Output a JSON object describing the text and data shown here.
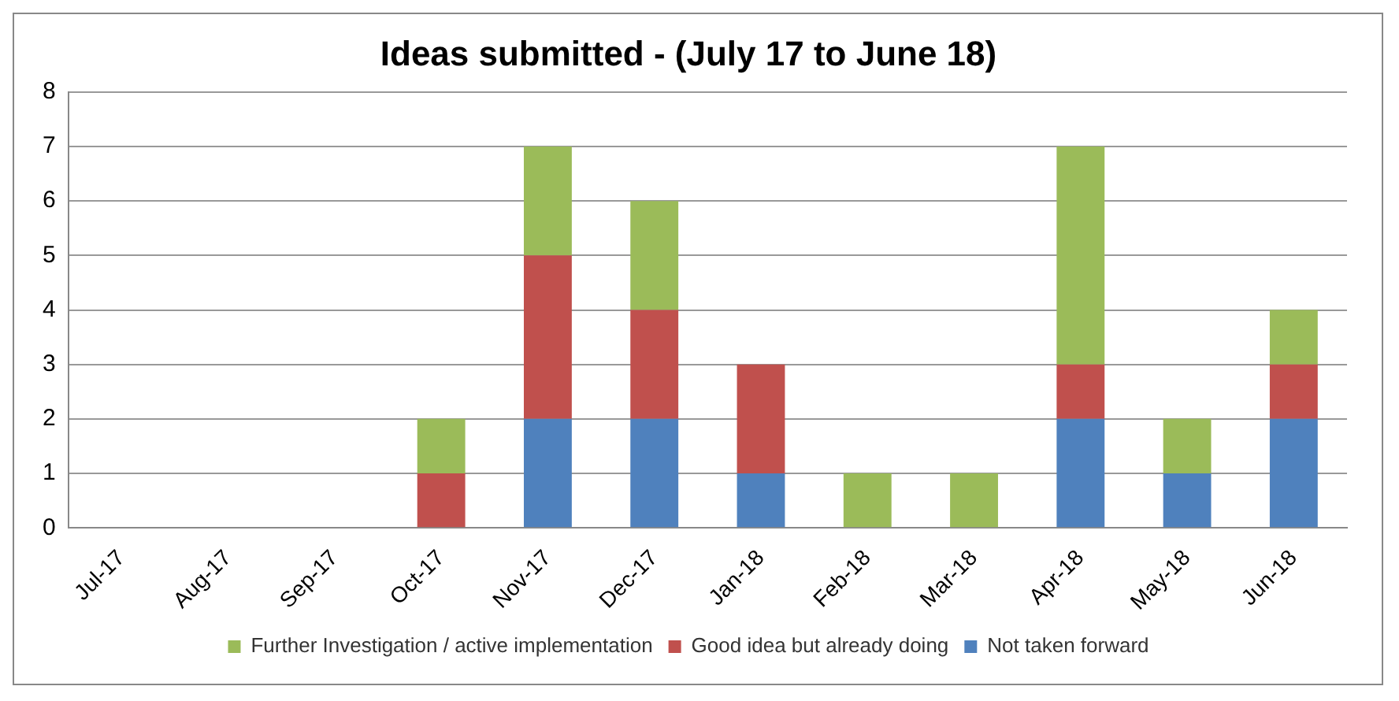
{
  "chart_data": {
    "type": "bar",
    "title": "Ideas submitted - (July 17 to June 18)",
    "categories": [
      "Jul-17",
      "Aug-17",
      "Sep-17",
      "Oct-17",
      "Nov-17",
      "Dec-17",
      "Jan-18",
      "Feb-18",
      "Mar-18",
      "Apr-18",
      "May-18",
      "Jun-18"
    ],
    "series": [
      {
        "name": "Not taken forward",
        "color": "#4f81bd",
        "values": [
          0,
          0,
          0,
          0,
          2,
          2,
          1,
          0,
          0,
          2,
          1,
          2
        ]
      },
      {
        "name": "Good idea but already doing",
        "color": "#c0504d",
        "values": [
          0,
          0,
          0,
          1,
          3,
          2,
          2,
          0,
          0,
          1,
          0,
          1
        ]
      },
      {
        "name": "Further Investigation / active implementation",
        "color": "#9bbb59",
        "values": [
          0,
          0,
          0,
          1,
          2,
          2,
          0,
          1,
          1,
          4,
          1,
          1
        ]
      }
    ],
    "stacked": true,
    "ylim": [
      0,
      8
    ],
    "yticks": [
      0,
      1,
      2,
      3,
      4,
      5,
      6,
      7,
      8
    ],
    "grid": "y",
    "legend": "bottom"
  }
}
